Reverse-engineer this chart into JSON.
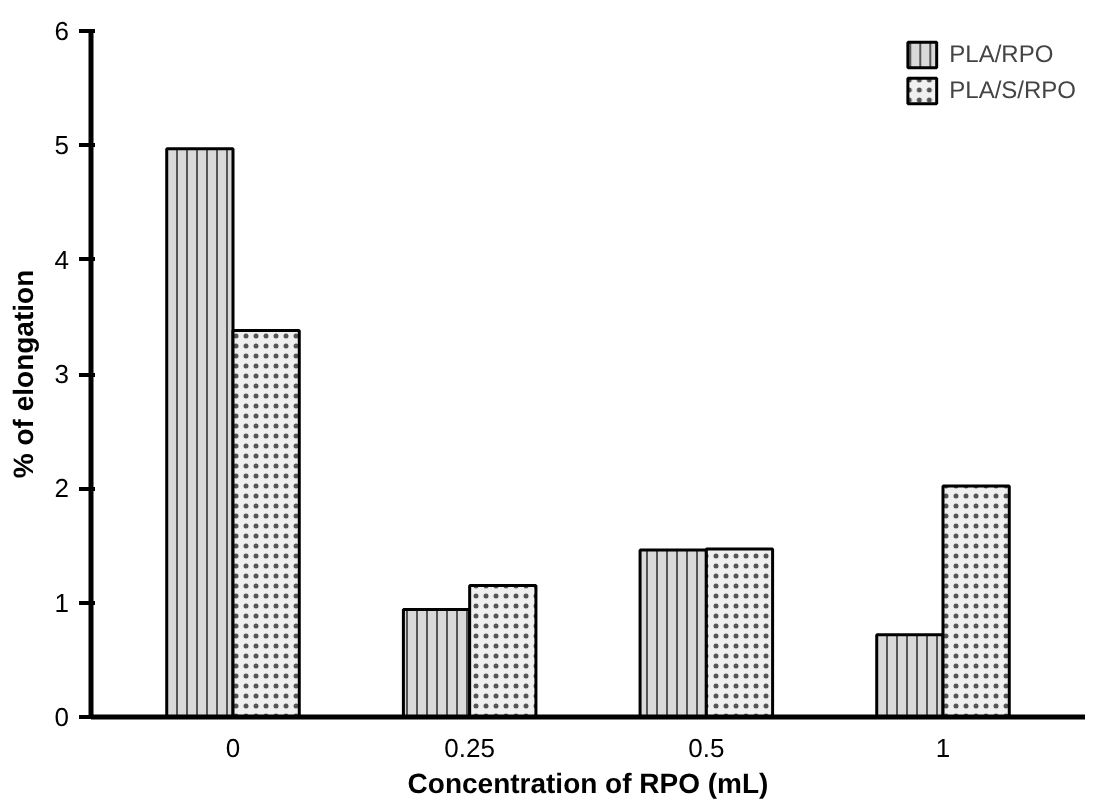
{
  "chart_data": {
    "type": "bar",
    "xlabel": "Concentration of RPO (mL)",
    "ylabel": "% of elongation",
    "categories": [
      "0",
      "0.25",
      "0.5",
      "1"
    ],
    "series": [
      {
        "name": "PLA/RPO",
        "color": "#d9d9d9",
        "values": [
          4.97,
          0.94,
          1.46,
          0.72
        ]
      },
      {
        "name": "PLA/S/RPO",
        "color": "#f0f0f0",
        "values": [
          3.38,
          1.15,
          1.47,
          2.02
        ]
      }
    ],
    "ylim": [
      0,
      6
    ],
    "yticks": [
      0,
      1,
      2,
      3,
      4,
      5,
      6
    ],
    "grid": false,
    "legend": "top right"
  }
}
